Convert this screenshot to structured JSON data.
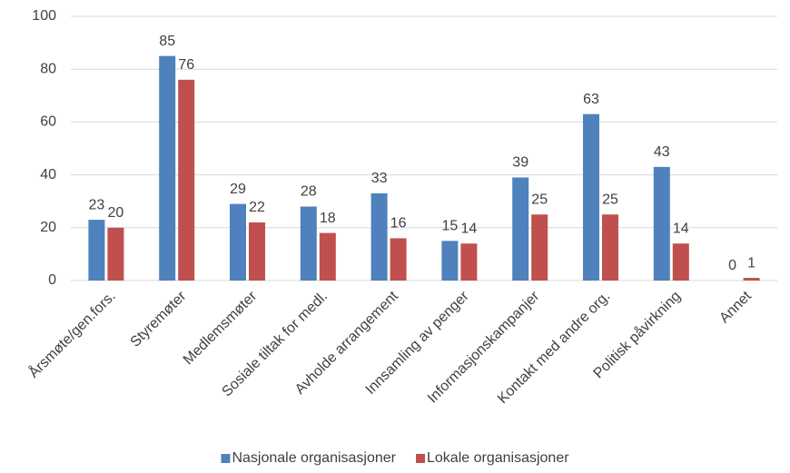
{
  "chart_data": {
    "type": "bar",
    "categories": [
      "Årsmøte/gen.fors.",
      "Styremøter",
      "Medlemsmøter",
      "Sosiale tiltak for medl.",
      "Avholde arrangement",
      "Innsamling av penger",
      "Informasjonskampanjer",
      "Kontakt med andre org.",
      "Politisk påvirkning",
      "Annet"
    ],
    "series": [
      {
        "name": "Nasjonale organisasjoner",
        "color": "#4f81bd",
        "values": [
          23,
          85,
          29,
          28,
          33,
          15,
          39,
          63,
          43,
          0
        ]
      },
      {
        "name": "Lokale organisasjoner",
        "color": "#c0504d",
        "values": [
          20,
          76,
          22,
          18,
          16,
          14,
          25,
          25,
          14,
          1
        ]
      }
    ],
    "ylim": [
      0,
      100
    ],
    "yticks": [
      0,
      20,
      40,
      60,
      80,
      100
    ],
    "grid": true,
    "legend": "bottom"
  }
}
